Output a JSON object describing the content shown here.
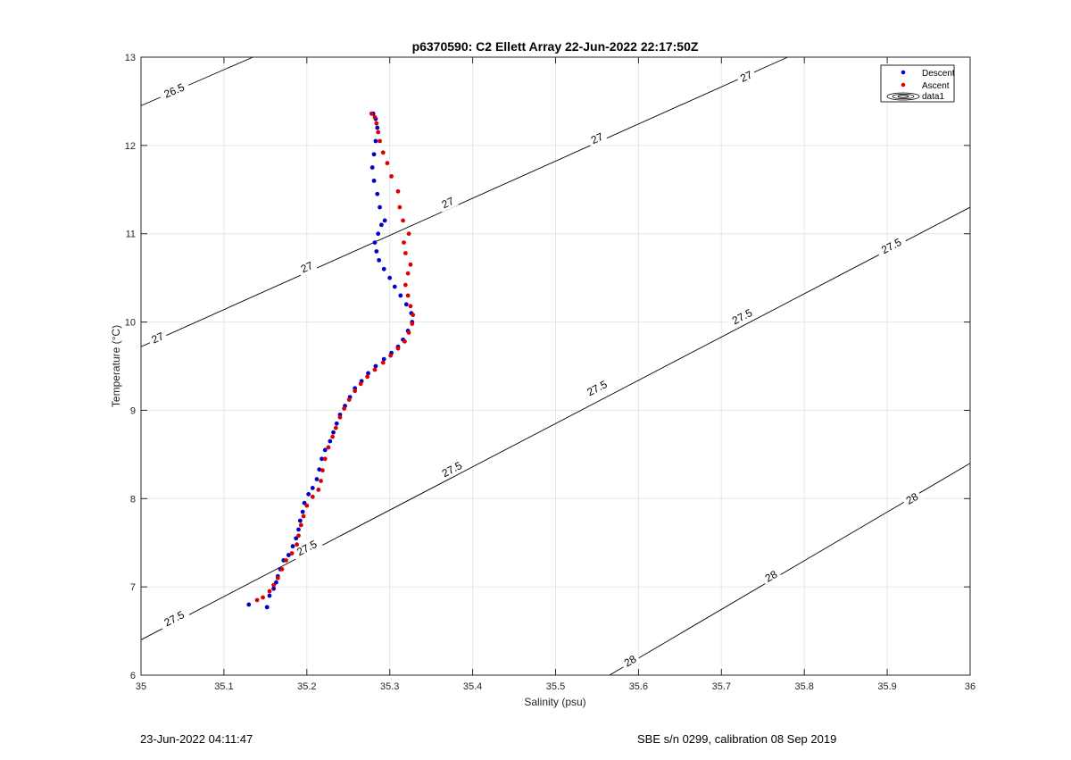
{
  "chart_data": {
    "type": "scatter",
    "title": "p6370590: C2 Ellett Array 22-Jun-2022 22:17:50Z",
    "xlabel": "Salinity (psu)",
    "ylabel": "Temperature (°C)",
    "xlim": [
      35,
      36
    ],
    "ylim": [
      6,
      13
    ],
    "xticks": [
      35,
      35.1,
      35.2,
      35.3,
      35.4,
      35.5,
      35.6,
      35.7,
      35.8,
      35.9,
      36
    ],
    "xtick_labels": [
      "35",
      "35.1",
      "35.2",
      "35.3",
      "35.4",
      "35.5",
      "35.6",
      "35.7",
      "35.8",
      "35.9",
      "36"
    ],
    "yticks": [
      6,
      7,
      8,
      9,
      10,
      11,
      12,
      13
    ],
    "ytick_labels": [
      "6",
      "7",
      "8",
      "9",
      "10",
      "11",
      "12",
      "13"
    ],
    "grid": true,
    "legend_position": "top-right",
    "legend": [
      {
        "name": "Descent",
        "color": "#0000cc",
        "kind": "marker"
      },
      {
        "name": "Ascent",
        "color": "#dd0000",
        "kind": "marker"
      },
      {
        "name": "data1",
        "color": "#000000",
        "kind": "contour"
      }
    ],
    "series": [
      {
        "name": "Descent",
        "color": "#0000cc",
        "points": [
          [
            35.152,
            6.77
          ],
          [
            35.155,
            6.9
          ],
          [
            35.16,
            6.98
          ],
          [
            35.163,
            7.05
          ],
          [
            35.165,
            7.12
          ],
          [
            35.168,
            7.2
          ],
          [
            35.172,
            7.3
          ],
          [
            35.178,
            7.36
          ],
          [
            35.183,
            7.46
          ],
          [
            35.187,
            7.55
          ],
          [
            35.19,
            7.65
          ],
          [
            35.192,
            7.75
          ],
          [
            35.195,
            7.85
          ],
          [
            35.197,
            7.95
          ],
          [
            35.202,
            8.05
          ],
          [
            35.207,
            8.12
          ],
          [
            35.212,
            8.22
          ],
          [
            35.215,
            8.33
          ],
          [
            35.218,
            8.45
          ],
          [
            35.222,
            8.55
          ],
          [
            35.228,
            8.65
          ],
          [
            35.232,
            8.75
          ],
          [
            35.236,
            8.85
          ],
          [
            35.24,
            8.95
          ],
          [
            35.246,
            9.05
          ],
          [
            35.252,
            9.15
          ],
          [
            35.258,
            9.25
          ],
          [
            35.266,
            9.33
          ],
          [
            35.274,
            9.42
          ],
          [
            35.283,
            9.5
          ],
          [
            35.293,
            9.58
          ],
          [
            35.302,
            9.65
          ],
          [
            35.31,
            9.72
          ],
          [
            35.316,
            9.8
          ],
          [
            35.322,
            9.9
          ],
          [
            35.327,
            10.0
          ],
          [
            35.326,
            10.1
          ],
          [
            35.32,
            10.2
          ],
          [
            35.313,
            10.3
          ],
          [
            35.306,
            10.4
          ],
          [
            35.3,
            10.5
          ],
          [
            35.293,
            10.6
          ],
          [
            35.287,
            10.7
          ],
          [
            35.284,
            10.8
          ],
          [
            35.282,
            10.9
          ],
          [
            35.286,
            11.0
          ],
          [
            35.29,
            11.1
          ],
          [
            35.294,
            11.15
          ],
          [
            35.288,
            11.3
          ],
          [
            35.285,
            11.45
          ],
          [
            35.281,
            11.6
          ],
          [
            35.279,
            11.75
          ],
          [
            35.281,
            11.9
          ],
          [
            35.283,
            12.05
          ],
          [
            35.285,
            12.2
          ],
          [
            35.283,
            12.3
          ],
          [
            35.28,
            12.36
          ],
          [
            35.13,
            6.8
          ]
        ]
      },
      {
        "name": "Ascent",
        "color": "#dd0000",
        "points": [
          [
            35.14,
            6.85
          ],
          [
            35.147,
            6.88
          ],
          [
            35.155,
            6.95
          ],
          [
            35.16,
            7.02
          ],
          [
            35.165,
            7.1
          ],
          [
            35.17,
            7.2
          ],
          [
            35.175,
            7.3
          ],
          [
            35.182,
            7.38
          ],
          [
            35.188,
            7.48
          ],
          [
            35.19,
            7.58
          ],
          [
            35.193,
            7.7
          ],
          [
            35.196,
            7.8
          ],
          [
            35.2,
            7.92
          ],
          [
            35.207,
            8.02
          ],
          [
            35.214,
            8.1
          ],
          [
            35.217,
            8.2
          ],
          [
            35.219,
            8.32
          ],
          [
            35.222,
            8.45
          ],
          [
            35.226,
            8.58
          ],
          [
            35.231,
            8.7
          ],
          [
            35.235,
            8.8
          ],
          [
            35.24,
            8.92
          ],
          [
            35.245,
            9.02
          ],
          [
            35.251,
            9.12
          ],
          [
            35.258,
            9.22
          ],
          [
            35.265,
            9.3
          ],
          [
            35.273,
            9.38
          ],
          [
            35.282,
            9.46
          ],
          [
            35.292,
            9.54
          ],
          [
            35.301,
            9.62
          ],
          [
            35.31,
            9.7
          ],
          [
            35.318,
            9.78
          ],
          [
            35.323,
            9.88
          ],
          [
            35.327,
            9.98
          ],
          [
            35.328,
            10.08
          ],
          [
            35.325,
            10.18
          ],
          [
            35.322,
            10.3
          ],
          [
            35.319,
            10.42
          ],
          [
            35.322,
            10.55
          ],
          [
            35.325,
            10.65
          ],
          [
            35.319,
            10.78
          ],
          [
            35.317,
            10.9
          ],
          [
            35.323,
            11.0
          ],
          [
            35.316,
            11.15
          ],
          [
            35.312,
            11.3
          ],
          [
            35.31,
            11.48
          ],
          [
            35.302,
            11.65
          ],
          [
            35.297,
            11.8
          ],
          [
            35.292,
            11.92
          ],
          [
            35.288,
            12.05
          ],
          [
            35.286,
            12.15
          ],
          [
            35.284,
            12.25
          ],
          [
            35.282,
            12.32
          ],
          [
            35.278,
            12.36
          ]
        ]
      }
    ],
    "contours": [
      {
        "level": "26.5",
        "points": [
          [
            35.0,
            12.45
          ],
          [
            35.135,
            13.0
          ]
        ],
        "labels": [
          [
            35.04,
            12.62
          ]
        ]
      },
      {
        "level": "27",
        "points": [
          [
            35.0,
            9.72
          ],
          [
            35.78,
            13.0
          ]
        ],
        "labels": [
          [
            35.02,
            9.82
          ],
          [
            35.2,
            10.62
          ],
          [
            35.37,
            11.35
          ],
          [
            35.55,
            12.08
          ],
          [
            35.73,
            12.78
          ]
        ]
      },
      {
        "level": "27.5",
        "points": [
          [
            35.0,
            6.4
          ],
          [
            36.0,
            11.3
          ]
        ],
        "labels": [
          [
            35.04,
            6.64
          ],
          [
            35.2,
            7.44
          ],
          [
            35.375,
            8.33
          ],
          [
            35.55,
            9.25
          ],
          [
            35.725,
            10.06
          ],
          [
            35.905,
            10.86
          ]
        ]
      },
      {
        "level": "28",
        "points": [
          [
            35.565,
            6.0
          ],
          [
            36.0,
            8.4
          ]
        ],
        "labels": [
          [
            35.59,
            6.16
          ],
          [
            35.76,
            7.12
          ],
          [
            35.93,
            8.0
          ]
        ]
      }
    ]
  },
  "footer": {
    "left": "23-Jun-2022 04:11:47",
    "right": "SBE s/n 0299, calibration 08 Sep 2019"
  }
}
